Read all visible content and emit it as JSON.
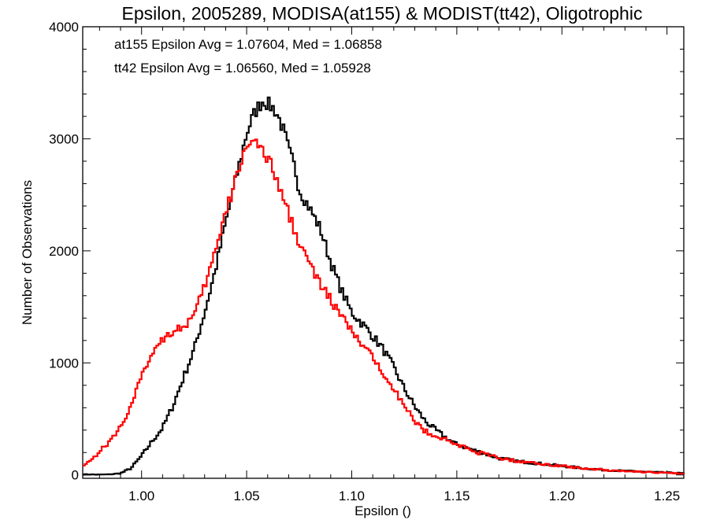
{
  "chart_data": {
    "type": "line",
    "step": true,
    "title": "Epsilon, 2005289, MODISA(at155) & MODIST(tt42), Oligotrophic",
    "xlabel": "Epsilon ()",
    "ylabel": "Number of Observations",
    "xlim": [
      0.972,
      1.258
    ],
    "ylim": [
      -30,
      4000
    ],
    "x_ticks": [
      1.0,
      1.05,
      1.1,
      1.15,
      1.2,
      1.25
    ],
    "x_tick_labels": [
      "1.00",
      "1.05",
      "1.10",
      "1.15",
      "1.20",
      "1.25"
    ],
    "y_ticks": [
      0,
      1000,
      2000,
      3000,
      4000
    ],
    "y_tick_labels": [
      "0",
      "1000",
      "2000",
      "3000",
      "4000"
    ],
    "grid": false,
    "annotations": [
      {
        "text": "at155 Epsilon Avg = 1.07604, Med = 1.06858",
        "color": "#000000"
      },
      {
        "text": "tt42 Epsilon Avg = 1.06560, Med = 1.05928",
        "color": "#ff0000"
      }
    ],
    "series": [
      {
        "color": "#000000",
        "points": [
          [
            0.972,
            5
          ],
          [
            0.98,
            3
          ],
          [
            0.985,
            5
          ],
          [
            0.99,
            15
          ],
          [
            0.995,
            60
          ],
          [
            1.0,
            170
          ],
          [
            1.005,
            300
          ],
          [
            1.01,
            420
          ],
          [
            1.015,
            620
          ],
          [
            1.02,
            870
          ],
          [
            1.025,
            1120
          ],
          [
            1.03,
            1450
          ],
          [
            1.035,
            1820
          ],
          [
            1.04,
            2250
          ],
          [
            1.045,
            2650
          ],
          [
            1.05,
            3050
          ],
          [
            1.053,
            3200
          ],
          [
            1.055,
            3270
          ],
          [
            1.058,
            3350
          ],
          [
            1.06,
            3310
          ],
          [
            1.063,
            3270
          ],
          [
            1.065,
            3200
          ],
          [
            1.068,
            3050
          ],
          [
            1.07,
            2900
          ],
          [
            1.073,
            2740
          ],
          [
            1.075,
            2550
          ],
          [
            1.08,
            2380
          ],
          [
            1.085,
            2200
          ],
          [
            1.09,
            1900
          ],
          [
            1.095,
            1650
          ],
          [
            1.1,
            1450
          ],
          [
            1.105,
            1350
          ],
          [
            1.11,
            1240
          ],
          [
            1.115,
            1120
          ],
          [
            1.12,
            960
          ],
          [
            1.125,
            770
          ],
          [
            1.13,
            610
          ],
          [
            1.135,
            480
          ],
          [
            1.14,
            400
          ],
          [
            1.145,
            330
          ],
          [
            1.15,
            270
          ],
          [
            1.155,
            240
          ],
          [
            1.16,
            210
          ],
          [
            1.165,
            180
          ],
          [
            1.17,
            150
          ],
          [
            1.18,
            120
          ],
          [
            1.19,
            100
          ],
          [
            1.2,
            80
          ],
          [
            1.21,
            60
          ],
          [
            1.22,
            45
          ],
          [
            1.23,
            35
          ],
          [
            1.24,
            28
          ],
          [
            1.25,
            20
          ],
          [
            1.258,
            15
          ]
        ]
      },
      {
        "color": "#ff0000",
        "points": [
          [
            0.972,
            90
          ],
          [
            0.976,
            130
          ],
          [
            0.98,
            210
          ],
          [
            0.985,
            300
          ],
          [
            0.99,
            430
          ],
          [
            0.995,
            620
          ],
          [
            1.0,
            870
          ],
          [
            1.003,
            1000
          ],
          [
            1.005,
            1100
          ],
          [
            1.008,
            1170
          ],
          [
            1.01,
            1220
          ],
          [
            1.013,
            1260
          ],
          [
            1.015,
            1290
          ],
          [
            1.02,
            1320
          ],
          [
            1.025,
            1420
          ],
          [
            1.03,
            1680
          ],
          [
            1.035,
            1990
          ],
          [
            1.04,
            2330
          ],
          [
            1.045,
            2650
          ],
          [
            1.048,
            2850
          ],
          [
            1.05,
            2950
          ],
          [
            1.052,
            3000
          ],
          [
            1.055,
            2960
          ],
          [
            1.058,
            2850
          ],
          [
            1.06,
            2800
          ],
          [
            1.063,
            2730
          ],
          [
            1.065,
            2560
          ],
          [
            1.068,
            2450
          ],
          [
            1.07,
            2330
          ],
          [
            1.075,
            2080
          ],
          [
            1.08,
            1880
          ],
          [
            1.085,
            1700
          ],
          [
            1.09,
            1560
          ],
          [
            1.095,
            1420
          ],
          [
            1.1,
            1280
          ],
          [
            1.105,
            1160
          ],
          [
            1.11,
            1040
          ],
          [
            1.115,
            920
          ],
          [
            1.12,
            780
          ],
          [
            1.125,
            610
          ],
          [
            1.13,
            480
          ],
          [
            1.135,
            390
          ],
          [
            1.14,
            350
          ],
          [
            1.145,
            310
          ],
          [
            1.15,
            270
          ],
          [
            1.155,
            240
          ],
          [
            1.16,
            200
          ],
          [
            1.165,
            180
          ],
          [
            1.17,
            150
          ],
          [
            1.18,
            120
          ],
          [
            1.19,
            100
          ],
          [
            1.2,
            80
          ],
          [
            1.21,
            60
          ],
          [
            1.22,
            45
          ],
          [
            1.23,
            35
          ],
          [
            1.24,
            25
          ],
          [
            1.25,
            18
          ],
          [
            1.258,
            12
          ]
        ]
      }
    ]
  }
}
